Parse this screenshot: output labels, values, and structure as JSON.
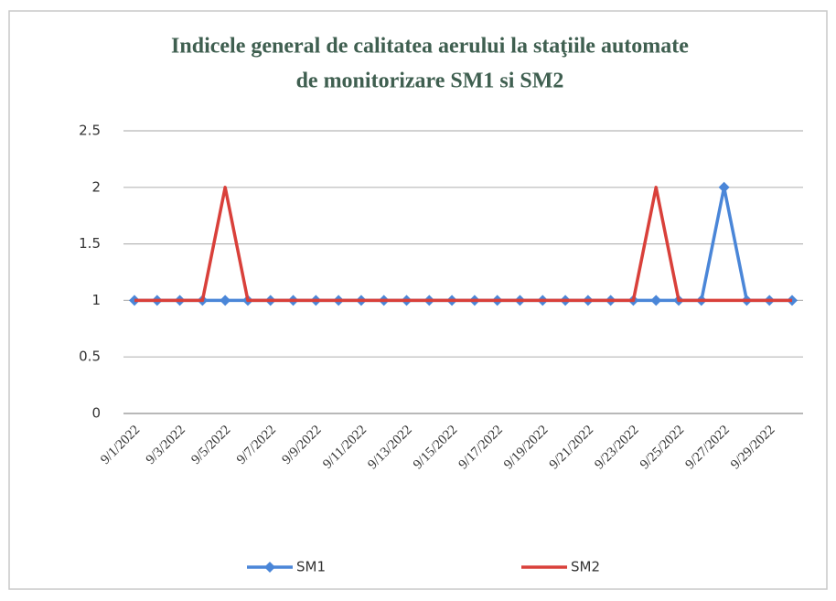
{
  "chart_data": {
    "type": "line",
    "title": [
      "Indicele general de calitatea aerului la staţiile automate",
      "de monitorizare SM1 si SM2"
    ],
    "categories": [
      "9/1/2022",
      null,
      "9/3/2022",
      null,
      "9/5/2022",
      null,
      "9/7/2022",
      null,
      "9/9/2022",
      null,
      "9/11/2022",
      null,
      "9/13/2022",
      null,
      "9/15/2022",
      null,
      "9/17/2022",
      null,
      "9/19/2022",
      null,
      "9/21/2022",
      null,
      "9/23/2022",
      null,
      "9/25/2022",
      null,
      "9/27/2022",
      null,
      "9/29/2022",
      null
    ],
    "series": [
      {
        "name": "SM1",
        "color": "#4a86d8",
        "marker": "diamond",
        "values": [
          1,
          1,
          1,
          1,
          1,
          1,
          1,
          1,
          1,
          1,
          1,
          1,
          1,
          1,
          1,
          1,
          1,
          1,
          1,
          1,
          1,
          1,
          1,
          1,
          1,
          1,
          2,
          1,
          1,
          1
        ]
      },
      {
        "name": "SM2",
        "color": "#d9403a",
        "values": [
          1,
          1,
          1,
          1,
          2,
          1,
          1,
          1,
          1,
          1,
          1,
          1,
          1,
          1,
          1,
          1,
          1,
          1,
          1,
          1,
          1,
          1,
          1,
          2,
          1,
          1,
          1,
          1,
          1,
          1
        ]
      }
    ],
    "ylim": [
      0,
      2.5
    ],
    "yticks": [
      0,
      0.5,
      1,
      1.5,
      2,
      2.5
    ],
    "grid": true,
    "legend": "bottom"
  }
}
